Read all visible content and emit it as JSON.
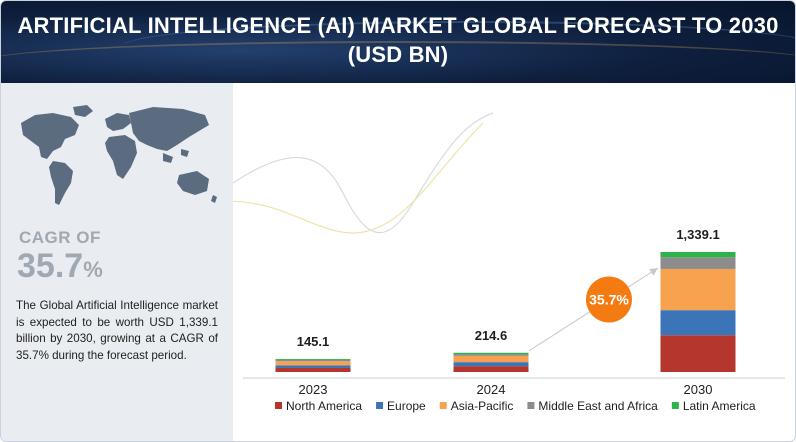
{
  "title": "ARTIFICIAL INTELLIGENCE (AI) MARKET GLOBAL FORECAST TO 2030 (USD BN)",
  "left_panel": {
    "cagr_label": "CAGR OF",
    "cagr_number": "35.7",
    "cagr_unit": "%",
    "description": "The Global Artificial Intelligence market is expected to be worth USD 1,339.1 billion by 2030, growing at a CAGR of 35.7% during the forecast period."
  },
  "badge": "35.7%",
  "colors": {
    "North America": "#b5362c",
    "Europe": "#3c74b8",
    "Asia-Pacific": "#f7a24f",
    "Middle East and Africa": "#8c8c8c",
    "Latin America": "#2db34a",
    "badge": "#f47a12",
    "header": "#0e1f3d"
  },
  "chart_data": {
    "type": "bar",
    "stacked": true,
    "categories": [
      "2023",
      "2024",
      "2030"
    ],
    "totals": [
      "145.1",
      "214.6",
      "1,339.1"
    ],
    "series": [
      {
        "name": "North America",
        "values": [
          45,
          65,
          410
        ]
      },
      {
        "name": "Europe",
        "values": [
          30,
          45,
          280
        ]
      },
      {
        "name": "Asia-Pacific",
        "values": [
          45,
          70,
          460
        ]
      },
      {
        "name": "Middle East and Africa",
        "values": [
          15,
          20,
          130
        ]
      },
      {
        "name": "Latin America",
        "values": [
          10.1,
          14.6,
          59.1
        ]
      }
    ],
    "legend_position": "bottom",
    "grid": false
  }
}
